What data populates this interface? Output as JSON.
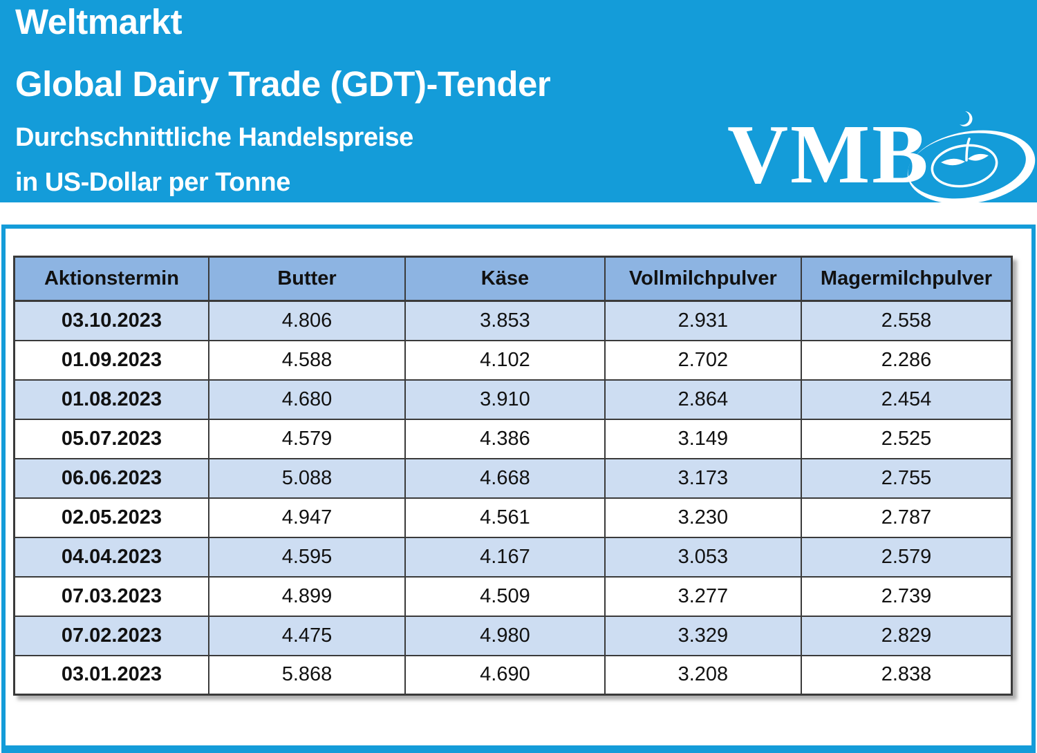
{
  "header": {
    "title_line1": "Weltmarkt",
    "title_line2": "Global Dairy Trade (GDT)-Tender",
    "subtitle_line1": "Durchschnittliche Handelspreise",
    "subtitle_line2": "in US-Dollar per Tonne",
    "logo_text": "VMB"
  },
  "colors": {
    "brand_blue": "#149cd9",
    "table_header_bg": "#8db4e2",
    "row_shaded_bg": "#cdddf2",
    "row_plain_bg": "#ffffff",
    "table_border": "#3a3a3a",
    "text_dark": "#111111",
    "text_light": "#ffffff"
  },
  "table": {
    "columns": [
      "Aktionstermin",
      "Butter",
      "Käse",
      "Vollmilchpulver",
      "Magermilchpulver"
    ],
    "column_widths_pct": [
      19.5,
      19.7,
      20.0,
      19.7,
      21.1
    ],
    "rows": [
      {
        "date": "03.10.2023",
        "values": [
          "4.806",
          "3.853",
          "2.931",
          "2.558"
        ]
      },
      {
        "date": "01.09.2023",
        "values": [
          "4.588",
          "4.102",
          "2.702",
          "2.286"
        ]
      },
      {
        "date": "01.08.2023",
        "values": [
          "4.680",
          "3.910",
          "2.864",
          "2.454"
        ]
      },
      {
        "date": "05.07.2023",
        "values": [
          "4.579",
          "4.386",
          "3.149",
          "2.525"
        ]
      },
      {
        "date": "06.06.2023",
        "values": [
          "5.088",
          "4.668",
          "3.173",
          "2.755"
        ]
      },
      {
        "date": "02.05.2023",
        "values": [
          "4.947",
          "4.561",
          "3.230",
          "2.787"
        ]
      },
      {
        "date": "04.04.2023",
        "values": [
          "4.595",
          "4.167",
          "3.053",
          "2.579"
        ]
      },
      {
        "date": "07.03.2023",
        "values": [
          "4.899",
          "4.509",
          "3.277",
          "2.739"
        ]
      },
      {
        "date": "07.02.2023",
        "values": [
          "4.475",
          "4.980",
          "3.329",
          "2.829"
        ]
      },
      {
        "date": "03.01.2023",
        "values": [
          "5.868",
          "4.690",
          "3.208",
          "2.838"
        ]
      }
    ]
  },
  "chart_data": {
    "type": "table",
    "title": "Weltmarkt — Global Dairy Trade (GDT)-Tender, Durchschnittliche Handelspreise in US-Dollar per Tonne",
    "categories": [
      "03.10.2023",
      "01.09.2023",
      "01.08.2023",
      "05.07.2023",
      "06.06.2023",
      "02.05.2023",
      "04.04.2023",
      "07.03.2023",
      "07.02.2023",
      "03.01.2023"
    ],
    "series": [
      {
        "name": "Butter",
        "values": [
          4806,
          4588,
          4680,
          4579,
          5088,
          4947,
          4595,
          4899,
          4475,
          5868
        ]
      },
      {
        "name": "Käse",
        "values": [
          3853,
          4102,
          3910,
          4386,
          4668,
          4561,
          4167,
          4509,
          4980,
          4690
        ]
      },
      {
        "name": "Vollmilchpulver",
        "values": [
          2931,
          2702,
          2864,
          3149,
          3173,
          3230,
          3053,
          3277,
          3329,
          3208
        ]
      },
      {
        "name": "Magermilchpulver",
        "values": [
          2558,
          2286,
          2454,
          2525,
          2755,
          2787,
          2579,
          2739,
          2829,
          2838
        ]
      }
    ],
    "unit": "US-Dollar per Tonne"
  }
}
